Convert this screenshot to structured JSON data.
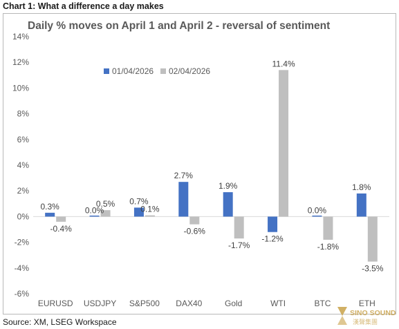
{
  "caption": "Chart 1: What a difference a day makes",
  "source": "Source: XM, LSEG Workspace",
  "watermark": {
    "text": "SINO SOUND",
    "subtext": "漢聲集團"
  },
  "colors": {
    "series1": "#4472C4",
    "series2": "#BFBFBF"
  },
  "chart_data": {
    "type": "bar",
    "title": "Daily % moves on April 1 and April 2 - reversal of sentiment",
    "xlabel": "",
    "ylabel": "",
    "ylim": [
      -6,
      14
    ],
    "ytick_step": 2,
    "ytick_labels": [
      "-6%",
      "-4%",
      "-2%",
      "0%",
      "2%",
      "4%",
      "6%",
      "8%",
      "10%",
      "12%",
      "14%"
    ],
    "grid": false,
    "legend": "top-left",
    "categories": [
      "EURUSD",
      "USDJPY",
      "S&P500",
      "DAX40",
      "Gold",
      "WTI",
      "BTC",
      "ETH"
    ],
    "series": [
      {
        "name": "01/04/2026",
        "color": "#4472C4",
        "values": [
          0.3,
          0.0,
          0.7,
          2.7,
          1.9,
          -1.2,
          0.0,
          1.8
        ],
        "labels": [
          "0.3%",
          "0.0%",
          "0.7%",
          "2.7%",
          "1.9%",
          "-1.2%",
          "0.0%",
          "1.8%"
        ]
      },
      {
        "name": "02/04/2026",
        "color": "#BFBFBF",
        "values": [
          -0.4,
          0.5,
          0.1,
          -0.6,
          -1.7,
          11.4,
          -1.8,
          -3.5
        ],
        "labels": [
          "-0.4%",
          "0.5%",
          "0.1%",
          "-0.6%",
          "-1.7%",
          "11.4%",
          "-1.8%",
          "-3.5%"
        ]
      }
    ]
  }
}
